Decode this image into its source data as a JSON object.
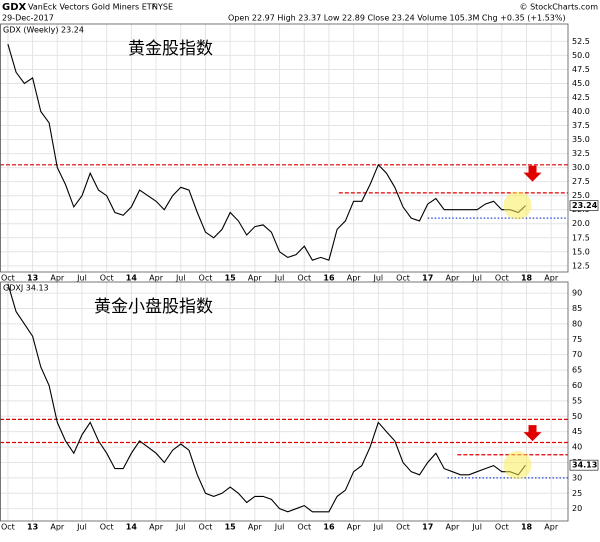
{
  "header": {
    "symbol": "GDX",
    "name": "VanEck Vectors Gold Miners ETF",
    "exchange": "NYSE",
    "date": "29-Dec-2017",
    "quote": "Open 22.97  High 23.37  Low 22.89  Close 23.24  Volume 105.3M  Chg +0.35 (+1.53%)",
    "credit": "© StockCharts.com"
  },
  "chart_data": [
    {
      "type": "line",
      "label": "GDX (Weekly) 23.24",
      "title": "黄金股指数",
      "x": [
        2012.75,
        2012.833,
        2012.917,
        2013,
        2013.083,
        2013.167,
        2013.25,
        2013.333,
        2013.417,
        2013.5,
        2013.583,
        2013.667,
        2013.75,
        2013.833,
        2013.917,
        2014,
        2014.083,
        2014.167,
        2014.25,
        2014.333,
        2014.417,
        2014.5,
        2014.583,
        2014.667,
        2014.75,
        2014.833,
        2014.917,
        2015,
        2015.083,
        2015.167,
        2015.25,
        2015.333,
        2015.417,
        2015.5,
        2015.583,
        2015.667,
        2015.75,
        2015.833,
        2015.917,
        2016,
        2016.083,
        2016.167,
        2016.25,
        2016.333,
        2016.417,
        2016.5,
        2016.583,
        2016.667,
        2016.75,
        2016.833,
        2016.917,
        2017,
        2017.083,
        2017.167,
        2017.25,
        2017.333,
        2017.417,
        2017.5,
        2017.583,
        2017.667,
        2017.75,
        2017.833,
        2017.917,
        2017.99
      ],
      "series": [
        {
          "name": "GDX",
          "color": "#000000",
          "values": [
            52,
            47,
            45,
            46,
            40,
            38,
            30,
            27,
            23,
            25,
            29,
            26,
            25,
            22,
            21.5,
            23,
            26,
            25,
            24,
            22.5,
            25,
            26.5,
            26,
            22,
            18.5,
            17.5,
            19,
            22,
            20.5,
            18,
            19.5,
            19.8,
            18.5,
            15,
            14,
            14.5,
            16,
            13.5,
            14,
            13.5,
            19,
            20.5,
            24,
            24,
            27,
            30.5,
            29,
            26.5,
            23,
            21,
            20.5,
            23.5,
            24.5,
            22.5,
            22.5,
            22.5,
            22.5,
            22.5,
            23.5,
            24,
            22.5,
            22.5,
            22,
            23.24
          ]
        }
      ],
      "xlim": [
        2012.67,
        2018.42
      ],
      "xticks": [
        {
          "value": 2012.75,
          "label": "Oct"
        },
        {
          "value": 2013,
          "label": "13"
        },
        {
          "value": 2013.25,
          "label": "Apr"
        },
        {
          "value": 2013.5,
          "label": "Jul"
        },
        {
          "value": 2013.75,
          "label": "Oct"
        },
        {
          "value": 2014,
          "label": "14"
        },
        {
          "value": 2014.25,
          "label": "Apr"
        },
        {
          "value": 2014.5,
          "label": "Jul"
        },
        {
          "value": 2014.75,
          "label": "Oct"
        },
        {
          "value": 2015,
          "label": "15"
        },
        {
          "value": 2015.25,
          "label": "Apr"
        },
        {
          "value": 2015.5,
          "label": "Jul"
        },
        {
          "value": 2015.75,
          "label": "Oct"
        },
        {
          "value": 2016,
          "label": "16"
        },
        {
          "value": 2016.25,
          "label": "Apr"
        },
        {
          "value": 2016.5,
          "label": "Jul"
        },
        {
          "value": 2016.75,
          "label": "Oct"
        },
        {
          "value": 2017,
          "label": "17"
        },
        {
          "value": 2017.25,
          "label": "Apr"
        },
        {
          "value": 2017.5,
          "label": "Jul"
        },
        {
          "value": 2017.75,
          "label": "Oct"
        },
        {
          "value": 2018,
          "label": "18"
        },
        {
          "value": 2018.25,
          "label": "Apr"
        }
      ],
      "ylim": [
        11.4,
        55.6
      ],
      "yticks": [
        12.5,
        {
          "value": 15,
          "label": "15.0"
        },
        17.5,
        {
          "value": 20,
          "label": "20.0"
        },
        22.5,
        {
          "value": 25,
          "label": "25.0"
        },
        27.5,
        {
          "value": 30,
          "label": "30.0"
        },
        32.5,
        {
          "value": 35,
          "label": "35.0"
        },
        37.5,
        {
          "value": 40,
          "label": "40.0"
        },
        42.5,
        {
          "value": 45,
          "label": "45.0"
        },
        47.5,
        {
          "value": 50,
          "label": "50.0"
        },
        52.5
      ],
      "grid": true,
      "hlines": [
        {
          "value": 30.5,
          "color": "#e00000",
          "from": 2012.67
        },
        {
          "value": 25.5,
          "color": "#e00000",
          "from": 2016.1
        },
        {
          "value": 21,
          "color": "#1f3fd0",
          "from": 2017.0
        }
      ]
    },
    {
      "type": "line",
      "label": "GDXJ 34.13",
      "title": "黄金小盘股指数",
      "x": [
        2012.75,
        2012.833,
        2012.917,
        2013,
        2013.083,
        2013.167,
        2013.25,
        2013.333,
        2013.417,
        2013.5,
        2013.583,
        2013.667,
        2013.75,
        2013.833,
        2013.917,
        2014,
        2014.083,
        2014.167,
        2014.25,
        2014.333,
        2014.417,
        2014.5,
        2014.583,
        2014.667,
        2014.75,
        2014.833,
        2014.917,
        2015,
        2015.083,
        2015.167,
        2015.25,
        2015.333,
        2015.417,
        2015.5,
        2015.583,
        2015.667,
        2015.75,
        2015.833,
        2015.917,
        2016,
        2016.083,
        2016.167,
        2016.25,
        2016.333,
        2016.417,
        2016.5,
        2016.583,
        2016.667,
        2016.75,
        2016.833,
        2016.917,
        2017,
        2017.083,
        2017.167,
        2017.25,
        2017.333,
        2017.417,
        2017.5,
        2017.583,
        2017.667,
        2017.75,
        2017.833,
        2017.917,
        2017.99
      ],
      "series": [
        {
          "name": "GDXJ",
          "color": "#000000",
          "values": [
            93,
            84,
            80,
            76,
            66,
            60,
            48,
            42,
            38,
            44,
            48,
            42,
            38,
            33,
            33,
            38,
            42,
            40,
            38,
            35,
            39,
            41,
            39,
            31,
            25,
            24,
            25,
            27,
            25,
            22,
            24,
            24,
            23,
            20,
            19,
            20,
            21,
            19,
            19,
            19,
            24,
            26,
            32,
            34,
            40,
            48,
            45,
            42,
            35,
            32,
            31,
            35,
            38,
            33,
            32,
            31,
            31,
            32,
            33,
            34,
            32,
            32,
            31,
            34.13
          ]
        }
      ],
      "xlim": [
        2012.67,
        2018.42
      ],
      "xticks": [
        {
          "value": 2012.75,
          "label": "Oct"
        },
        {
          "value": 2013,
          "label": "13"
        },
        {
          "value": 2013.25,
          "label": "Apr"
        },
        {
          "value": 2013.5,
          "label": "Jul"
        },
        {
          "value": 2013.75,
          "label": "Oct"
        },
        {
          "value": 2014,
          "label": "14"
        },
        {
          "value": 2014.25,
          "label": "Apr"
        },
        {
          "value": 2014.5,
          "label": "Jul"
        },
        {
          "value": 2014.75,
          "label": "Oct"
        },
        {
          "value": 2015,
          "label": "15"
        },
        {
          "value": 2015.25,
          "label": "Apr"
        },
        {
          "value": 2015.5,
          "label": "Jul"
        },
        {
          "value": 2015.75,
          "label": "Oct"
        },
        {
          "value": 2016,
          "label": "16"
        },
        {
          "value": 2016.25,
          "label": "Apr"
        },
        {
          "value": 2016.5,
          "label": "Jul"
        },
        {
          "value": 2016.75,
          "label": "Oct"
        },
        {
          "value": 2017,
          "label": "17"
        },
        {
          "value": 2017.25,
          "label": "Apr"
        },
        {
          "value": 2017.5,
          "label": "Jul"
        },
        {
          "value": 2017.75,
          "label": "Oct"
        },
        {
          "value": 2018,
          "label": "18"
        },
        {
          "value": 2018.25,
          "label": "Apr"
        }
      ],
      "ylim": [
        16,
        93.6
      ],
      "yticks": [
        20,
        25,
        30,
        35,
        40,
        45,
        50,
        55,
        60,
        65,
        70,
        75,
        80,
        85,
        90
      ],
      "grid": true,
      "hlines": [
        {
          "value": 49,
          "color": "#e00000",
          "from": 2012.67
        },
        {
          "value": 41.5,
          "color": "#e00000",
          "from": 2012.67
        },
        {
          "value": 37.5,
          "color": "#e00000",
          "from": 2017.3
        },
        {
          "value": 30,
          "color": "#1f3fd0",
          "from": 2017.2
        }
      ]
    }
  ]
}
